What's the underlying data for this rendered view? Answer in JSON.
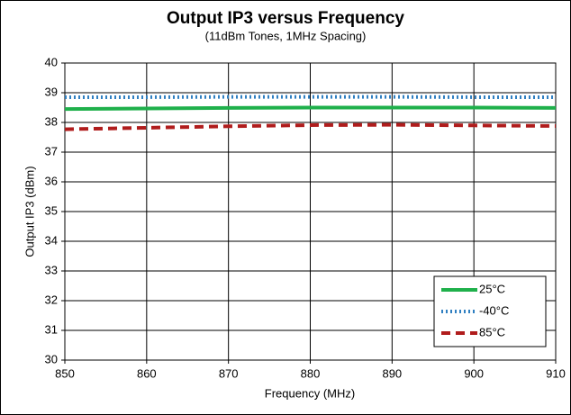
{
  "chart_data": {
    "type": "line",
    "title": "Output IP3 versus Frequency",
    "subtitle": "(11dBm Tones, 1MHz Spacing)",
    "x_label": "Frequency (MHz)",
    "y_label": "Output IP3 (dBm)",
    "x": [
      850,
      860,
      870,
      880,
      890,
      900,
      910
    ],
    "series": [
      {
        "name": "25°C",
        "color": "#1fb04b",
        "dash": "solid",
        "values": [
          38.45,
          38.47,
          38.49,
          38.5,
          38.5,
          38.5,
          38.49
        ]
      },
      {
        "name": "-40°C",
        "color": "#2f7fc1",
        "dash": "dotted",
        "values": [
          38.85,
          38.85,
          38.86,
          38.86,
          38.86,
          38.85,
          38.85
        ]
      },
      {
        "name": "85°C",
        "color": "#b01c1c",
        "dash": "dashed",
        "values": [
          37.77,
          37.82,
          37.87,
          37.91,
          37.92,
          37.9,
          37.88
        ]
      }
    ],
    "xlim": [
      850,
      910
    ],
    "xticks": [
      850,
      860,
      870,
      880,
      890,
      900,
      910
    ],
    "ylim": [
      30,
      40
    ],
    "yticks": [
      30,
      31,
      32,
      33,
      34,
      35,
      36,
      37,
      38,
      39,
      40
    ],
    "grid": true,
    "legend": "lower right"
  }
}
